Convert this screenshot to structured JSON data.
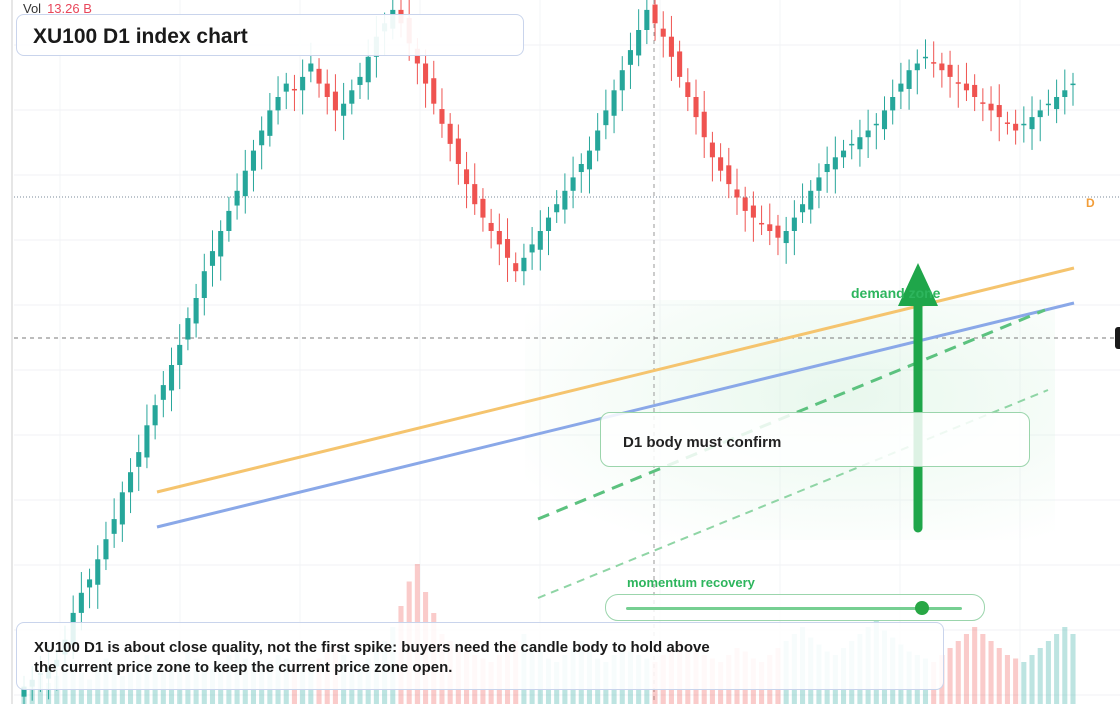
{
  "volume": {
    "label": "Vol",
    "value": "13.26 B"
  },
  "title": "XU100 D1 index chart",
  "annotations": {
    "demand_zone": "demand zone",
    "confirm": "D1 body must confirm",
    "momentum": "momentum recovery",
    "momentum_level": 0.88,
    "note": "XU100 D1 is about close quality, not the first spike: buyers need the candle body to hold above the current price zone to keep the current price zone open.",
    "badge": "D"
  },
  "colors": {
    "up": "#26a69a",
    "down": "#ef5350",
    "trend_orange": "#f5c46e",
    "trend_blue": "#8aa8e8",
    "accent_green": "#2db55d"
  },
  "chart_data": {
    "type": "candlestick",
    "symbol": "XU100",
    "timeframe": "D1",
    "price_range": [
      0,
      100
    ],
    "close": [
      2,
      3,
      4,
      5,
      6,
      9,
      13,
      16,
      18,
      21,
      24,
      27,
      31,
      34,
      37,
      41,
      44,
      47,
      50,
      53,
      57,
      60,
      64,
      67,
      70,
      73,
      76,
      79,
      82,
      85,
      88,
      90,
      92,
      91,
      93,
      95,
      92,
      90,
      88,
      89,
      91,
      93,
      96,
      99,
      101,
      103,
      101,
      98,
      95,
      92,
      89,
      86,
      83,
      80,
      77,
      74,
      72,
      70,
      68,
      66,
      64,
      66,
      68,
      70,
      72,
      74,
      76,
      78,
      80,
      82,
      85,
      88,
      91,
      94,
      97,
      100,
      103,
      101,
      99,
      96,
      93,
      90,
      87,
      84,
      81,
      79,
      77,
      75,
      73,
      72,
      71,
      70,
      69,
      70,
      72,
      74,
      76,
      78,
      80,
      81,
      82,
      83,
      84,
      85,
      86,
      88,
      90,
      92,
      94,
      95,
      96,
      95,
      94,
      93,
      92,
      91,
      90,
      89,
      88,
      87,
      86,
      85,
      86,
      87,
      88,
      89,
      90,
      91,
      92
    ],
    "volume": [
      5,
      7,
      9,
      6,
      8,
      10,
      12,
      9,
      7,
      11,
      13,
      10,
      8,
      9,
      12,
      14,
      11,
      9,
      10,
      12,
      15,
      13,
      11,
      10,
      12,
      14,
      16,
      13,
      11,
      10,
      12,
      14,
      13,
      12,
      11,
      10,
      13,
      15,
      17,
      14,
      12,
      11,
      13,
      15,
      18,
      22,
      28,
      35,
      40,
      32,
      26,
      20,
      18,
      16,
      15,
      14,
      13,
      12,
      14,
      16,
      18,
      20,
      17,
      15,
      13,
      12,
      14,
      16,
      18,
      15,
      13,
      12,
      14,
      16,
      15,
      14,
      13,
      12,
      14,
      16,
      18,
      17,
      15,
      14,
      13,
      12,
      14,
      16,
      15,
      13,
      12,
      14,
      16,
      18,
      20,
      22,
      19,
      17,
      15,
      14,
      16,
      18,
      20,
      22,
      24,
      21,
      19,
      17,
      15,
      14,
      13,
      12,
      14,
      16,
      18,
      20,
      22,
      20,
      18,
      16,
      14,
      13,
      12,
      14,
      16,
      18,
      20,
      22,
      20
    ]
  }
}
